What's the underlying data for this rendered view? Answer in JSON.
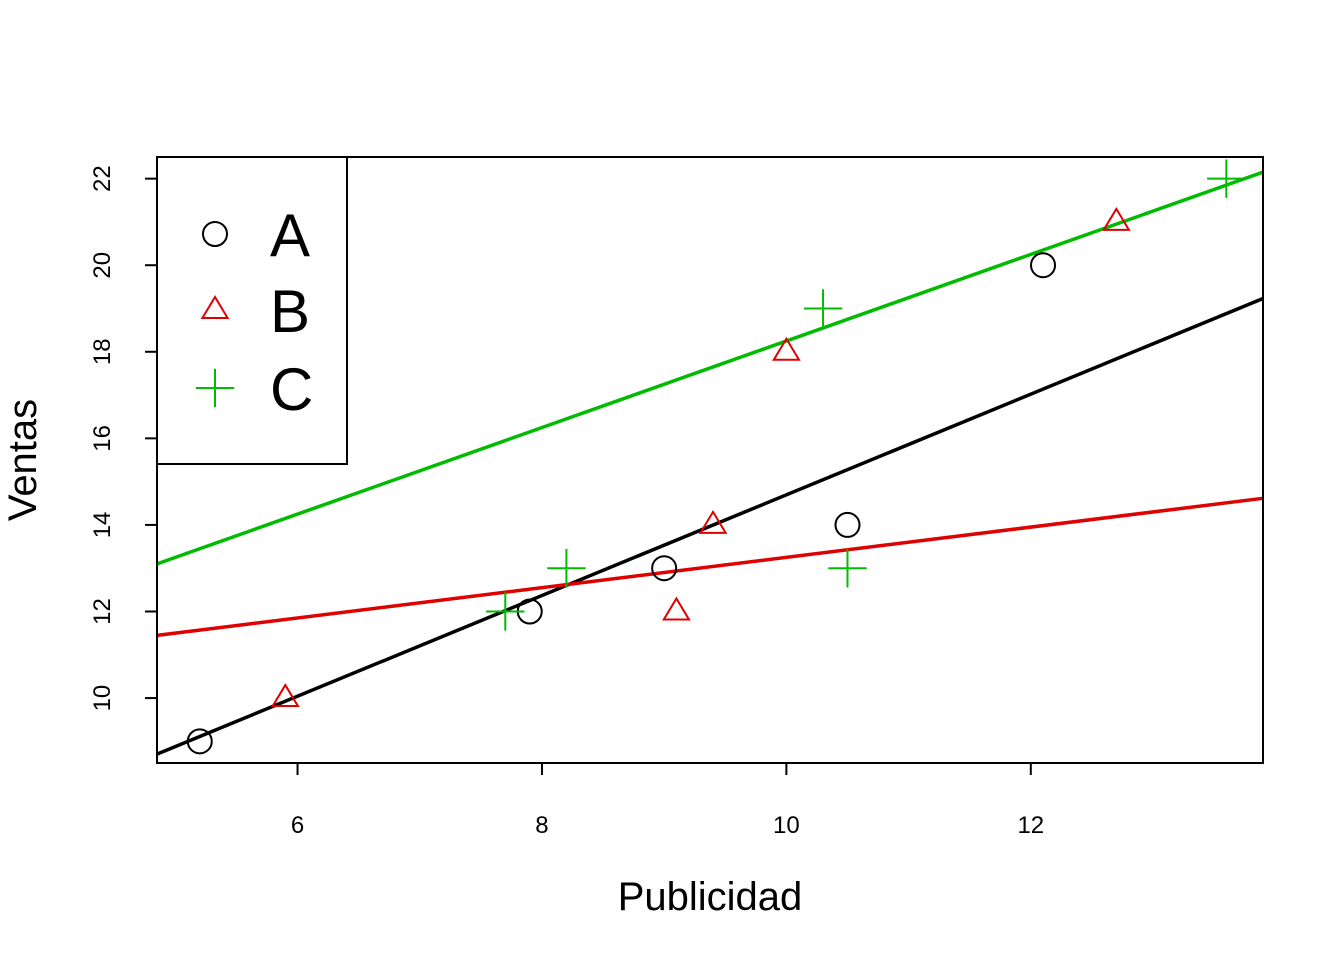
{
  "chart_data": {
    "type": "scatter",
    "title": "",
    "xlabel": "Publicidad",
    "ylabel": "Ventas",
    "xlim": [
      4.85,
      13.9
    ],
    "ylim": [
      8.5,
      22.5
    ],
    "x_ticks": [
      6,
      8,
      10,
      12
    ],
    "y_ticks": [
      10,
      12,
      14,
      16,
      18,
      20,
      22
    ],
    "grid": false,
    "legend_position": "top-left",
    "series": [
      {
        "name": "A",
        "color": "#000000",
        "marker": "circle",
        "points": [
          [
            5.2,
            9
          ],
          [
            7.9,
            12
          ],
          [
            9.0,
            13
          ],
          [
            10.5,
            14
          ],
          [
            12.1,
            20
          ]
        ],
        "fit_line": {
          "intercept": 3.065,
          "slope": 1.163
        }
      },
      {
        "name": "B",
        "color": "#DF0000",
        "marker": "triangle",
        "points": [
          [
            5.9,
            10
          ],
          [
            9.1,
            12
          ],
          [
            9.4,
            14
          ],
          [
            10.0,
            18
          ],
          [
            12.7,
            21
          ]
        ],
        "fit_line": {
          "intercept": 9.75,
          "slope": 0.35
        }
      },
      {
        "name": "C",
        "color": "#00BB00",
        "marker": "plus",
        "points": [
          [
            7.7,
            12
          ],
          [
            8.2,
            13
          ],
          [
            10.3,
            19
          ],
          [
            10.5,
            13
          ],
          [
            13.6,
            22
          ]
        ],
        "fit_line": {
          "intercept": 8.25,
          "slope": 1.0
        }
      }
    ]
  }
}
